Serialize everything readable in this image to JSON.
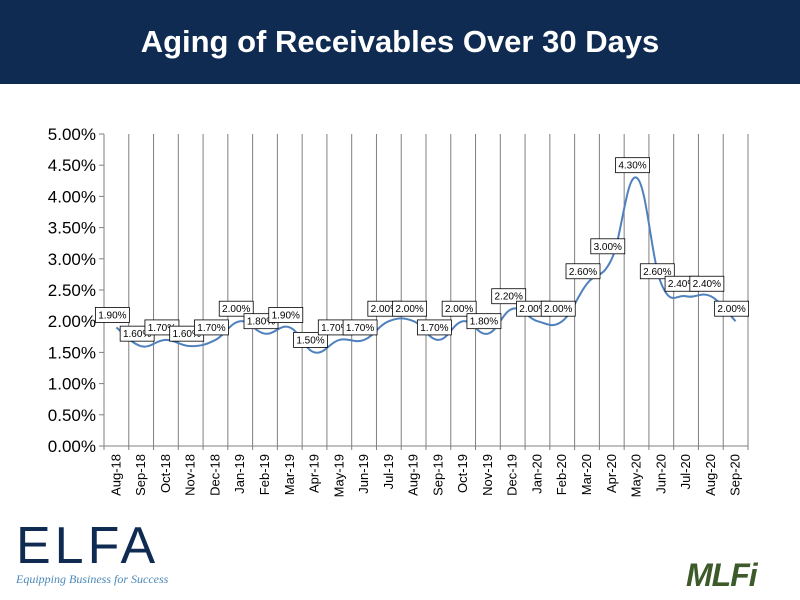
{
  "header": {
    "title": "Aging of Receivables Over 30 Days"
  },
  "logos": {
    "elfa_word": "ELFA",
    "elfa_tagline": "Equipping Business for Success",
    "mlfi_word": "MLFi"
  },
  "colors": {
    "header_bg": "#0f2b52",
    "line": "#4f81bd",
    "grid": "#808080",
    "elfa_blue": "#4a88b8",
    "mlfi_green": "#3d5a2a"
  },
  "chart_data": {
    "type": "line",
    "title": "",
    "xlabel": "",
    "ylabel": "",
    "ylim": [
      0,
      5
    ],
    "yticks": [
      0,
      0.5,
      1,
      1.5,
      2,
      2.5,
      3,
      3.5,
      4,
      4.5,
      5
    ],
    "ytick_labels": [
      "0.00%",
      "0.50%",
      "1.00%",
      "1.50%",
      "2.00%",
      "2.50%",
      "3.00%",
      "3.50%",
      "4.00%",
      "4.50%",
      "5.00%"
    ],
    "grid": "vertical",
    "categories": [
      "Aug-18",
      "Sep-18",
      "Oct-18",
      "Nov-18",
      "Dec-18",
      "Jan-19",
      "Feb-19",
      "Mar-19",
      "Apr-19",
      "May-19",
      "Jun-19",
      "Jul-19",
      "Aug-19",
      "Sep-19",
      "Oct-19",
      "Nov-19",
      "Dec-19",
      "Jan-20",
      "Feb-20",
      "Mar-20",
      "Apr-20",
      "May-20",
      "Jun-20",
      "Jul-20",
      "Aug-20",
      "Sep-20"
    ],
    "values": [
      1.9,
      1.6,
      1.7,
      1.6,
      1.7,
      2.0,
      1.8,
      1.9,
      1.5,
      1.7,
      1.7,
      2.0,
      2.0,
      1.7,
      2.0,
      1.8,
      2.2,
      2.0,
      2.0,
      2.6,
      3.0,
      4.3,
      2.6,
      2.4,
      2.4,
      2.0
    ],
    "data_labels": [
      "1.90%",
      "1.60%",
      "1.70%",
      "1.60%",
      "1.70%",
      "2.00%",
      "1.80%",
      "1.90%",
      "1.50%",
      "1.70%",
      "1.70%",
      "2.00%",
      "2.00%",
      "1.70%",
      "2.00%",
      "1.80%",
      "2.20%",
      "2.00%",
      "2.00%",
      "2.60%",
      "3.00%",
      "4.30%",
      "2.60%",
      "2.40%",
      "2.40%",
      "2.00%"
    ]
  }
}
